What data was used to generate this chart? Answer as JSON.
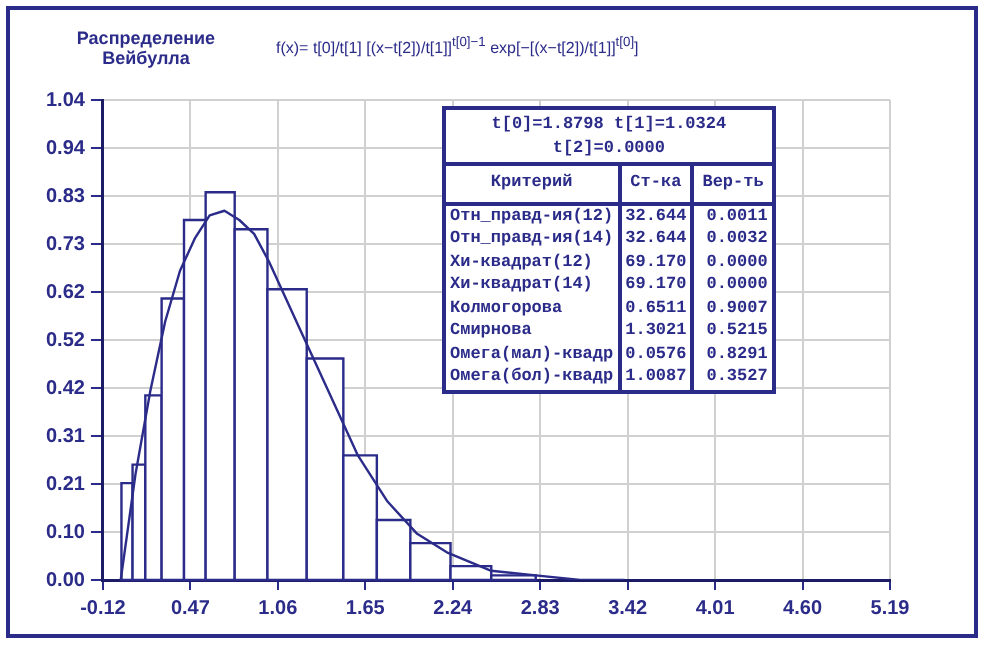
{
  "chart_data": {
    "type": "histogram",
    "title": "Распределение Вейбулла",
    "annotations": [
      "f(x)= t[0]/t[1] [(x−t[2])/t[1]]$^{t[0]−1}$ exp[−[(x−t[2])/t[1]]$^{t[0]}$]",
      "t[0]=1.8798  t[1]=1.0324",
      "t[2]=0.0000",
      "Критерий",
      "Ст-ка",
      "Вер-ть",
      "Отн_правд-ия(12)",
      "32.644",
      "0.0011",
      "Отн_правд-ия(14)",
      "32.644",
      "0.0032",
      "Хи-квадрат(12)",
      "69.170",
      "0.0000",
      "Хи-квадрат(14)",
      "69.170",
      "0.0000",
      "Колмогорова",
      "0.6511",
      "0.9007",
      "Смирнова",
      "1.3021",
      "0.5215",
      "Омега(мал)-квадр",
      "0.0576",
      "0.8291",
      "Омега(бол)-квадр",
      "1.0087",
      "0.3527"
    ],
    "bins": [
      0.005,
      0.08,
      0.166,
      0.276,
      0.427,
      0.573,
      0.769,
      0.99,
      1.255,
      1.502,
      1.728,
      1.954,
      2.225,
      2.5,
      2.8
    ],
    "values": [
      0.21,
      0.25,
      0.4,
      0.61,
      0.78,
      0.84,
      0.76,
      0.63,
      0.48,
      0.27,
      0.13,
      0.08,
      0.03,
      0.01
    ],
    "color": "#ffffff",
    "series": [
      {
        "type": "line",
        "color": "#2b2b8a",
        "x": [
          0,
          0.1,
          0.2,
          0.3,
          0.4,
          0.5,
          0.6,
          0.7,
          0.8,
          0.9,
          1.0,
          1.2,
          1.4,
          1.6,
          1.8,
          2.0,
          2.2,
          2.5,
          2.8,
          3.1,
          3.4
        ],
        "values": [
          0,
          0.23,
          0.41,
          0.56,
          0.67,
          0.74,
          0.79,
          0.8,
          0.78,
          0.75,
          0.69,
          0.55,
          0.41,
          0.27,
          0.17,
          0.1,
          0.06,
          0.02,
          0.01,
          0,
          0
        ]
      }
    ],
    "xlim": [
      -0.12,
      5.19
    ],
    "xticks": [
      -0.12,
      0.47,
      1.06,
      1.65,
      2.24,
      2.83,
      3.42,
      4.01,
      {
        "value": 4.6,
        "label": "4.60"
      },
      5.19
    ],
    "ylim": [
      0,
      1.04
    ],
    "yticks": [
      {
        "value": 0,
        "label": "0.00"
      },
      {
        "value": 0.104,
        "label": "0.10"
      },
      {
        "value": 0.208,
        "label": "0.21"
      },
      {
        "value": 0.312,
        "label": "0.31"
      },
      {
        "value": 0.416,
        "label": "0.42"
      },
      0.52,
      {
        "value": 0.624,
        "label": "0.62"
      },
      {
        "value": 0.728,
        "label": "0.73"
      },
      {
        "value": 0.832,
        "label": "0.83"
      },
      {
        "value": 0.936,
        "label": "0.94"
      },
      1.04
    ],
    "grid": true
  }
}
